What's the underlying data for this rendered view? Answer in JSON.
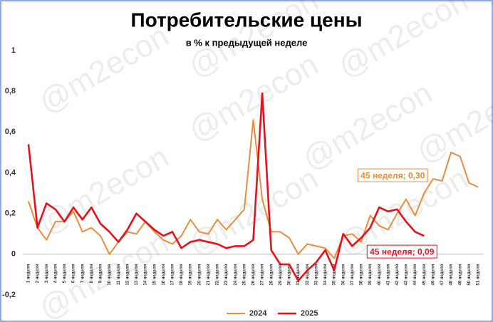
{
  "chart_data": {
    "type": "line",
    "title": "Потребительские цены",
    "subtitle": "в % к предыдущей неделе",
    "watermark": "@m2econ",
    "categories": [
      "1 неделя",
      "2 неделя",
      "3 неделя",
      "4 неделя",
      "5 неделя",
      "6 неделя",
      "7 неделя",
      "8 неделя",
      "9 неделя",
      "10 неделя",
      "11 неделя",
      "12 неделя",
      "13 неделя",
      "14 неделя",
      "15 неделя",
      "16 неделя",
      "17 неделя",
      "18 неделя",
      "19 неделя",
      "20 неделя",
      "21 неделя",
      "22 неделя",
      "23 неделя",
      "24 неделя",
      "25 неделя",
      "26 неделя",
      "27 неделя",
      "28 неделя",
      "29 неделя",
      "30 неделя",
      "31 неделя",
      "32 неделя",
      "33 неделя",
      "34 неделя",
      "35 неделя",
      "36 неделя",
      "37 неделя",
      "38 неделя",
      "39 неделя",
      "40 неделя",
      "41 неделя",
      "42 неделя",
      "43 неделя",
      "44 неделя",
      "45 неделя",
      "46 неделя",
      "47 неделя",
      "48 неделя",
      "49 неделя",
      "50 неделя",
      "51 неделя"
    ],
    "series": [
      {
        "name": "2024",
        "color": "#ed8c3a",
        "values": [
          0.26,
          0.13,
          0.07,
          0.16,
          0.16,
          0.21,
          0.11,
          0.13,
          0.09,
          0.0,
          0.06,
          0.11,
          0.1,
          0.16,
          0.11,
          0.07,
          0.05,
          0.09,
          0.17,
          0.11,
          0.1,
          0.17,
          0.12,
          0.17,
          0.22,
          0.66,
          0.27,
          0.11,
          0.11,
          0.08,
          0.0,
          0.05,
          0.04,
          0.03,
          -0.02,
          0.09,
          0.1,
          0.06,
          0.19,
          0.14,
          0.12,
          0.2,
          0.27,
          0.19,
          0.3,
          0.37,
          0.36,
          0.5,
          0.48,
          0.35,
          0.33
        ],
        "value_labels": [
          null,
          null,
          null,
          null,
          null,
          null,
          null,
          null,
          null,
          null,
          null,
          null,
          null,
          null,
          null,
          null,
          null,
          null,
          null,
          null,
          null,
          null,
          null,
          null,
          null,
          null,
          null,
          null,
          null,
          null,
          null,
          null,
          null,
          null,
          null,
          null,
          null,
          null,
          null,
          null,
          null,
          null,
          null,
          null,
          "45 неделя; 0,30",
          null,
          null,
          null,
          null,
          null,
          null
        ]
      },
      {
        "name": "2025",
        "color": "#e8111b",
        "values": [
          0.54,
          0.13,
          0.25,
          0.22,
          0.16,
          0.23,
          0.17,
          0.23,
          0.15,
          0.11,
          0.06,
          0.12,
          0.2,
          0.16,
          0.12,
          0.09,
          0.11,
          0.03,
          0.06,
          0.07,
          0.06,
          0.05,
          0.03,
          0.04,
          0.04,
          0.07,
          0.79,
          0.02,
          -0.05,
          -0.05,
          -0.13,
          -0.08,
          -0.04,
          0.02,
          -0.08,
          0.1,
          0.04,
          0.08,
          0.13,
          0.23,
          0.21,
          0.22,
          0.16,
          0.11,
          0.09,
          null,
          null,
          null,
          null,
          null,
          null
        ],
        "value_labels": [
          null,
          null,
          null,
          null,
          null,
          null,
          null,
          null,
          null,
          null,
          null,
          null,
          null,
          null,
          null,
          null,
          null,
          null,
          null,
          null,
          null,
          null,
          null,
          null,
          null,
          null,
          null,
          null,
          null,
          null,
          null,
          null,
          null,
          null,
          null,
          null,
          null,
          null,
          null,
          null,
          null,
          null,
          null,
          null,
          "45 неделя; 0,09",
          null,
          null,
          null,
          null,
          null,
          null
        ]
      }
    ],
    "ylim": [
      -0.2,
      1
    ],
    "yticks": [
      {
        "value": -0.2,
        "label": "-0,2"
      },
      0,
      {
        "value": 0.2,
        "label": "0,2"
      },
      {
        "value": 0.4,
        "label": "0,4"
      },
      {
        "value": 0.6,
        "label": "0,6"
      },
      {
        "value": 0.8,
        "label": "0,8"
      },
      1
    ],
    "grid": false,
    "legend": "bottom"
  }
}
